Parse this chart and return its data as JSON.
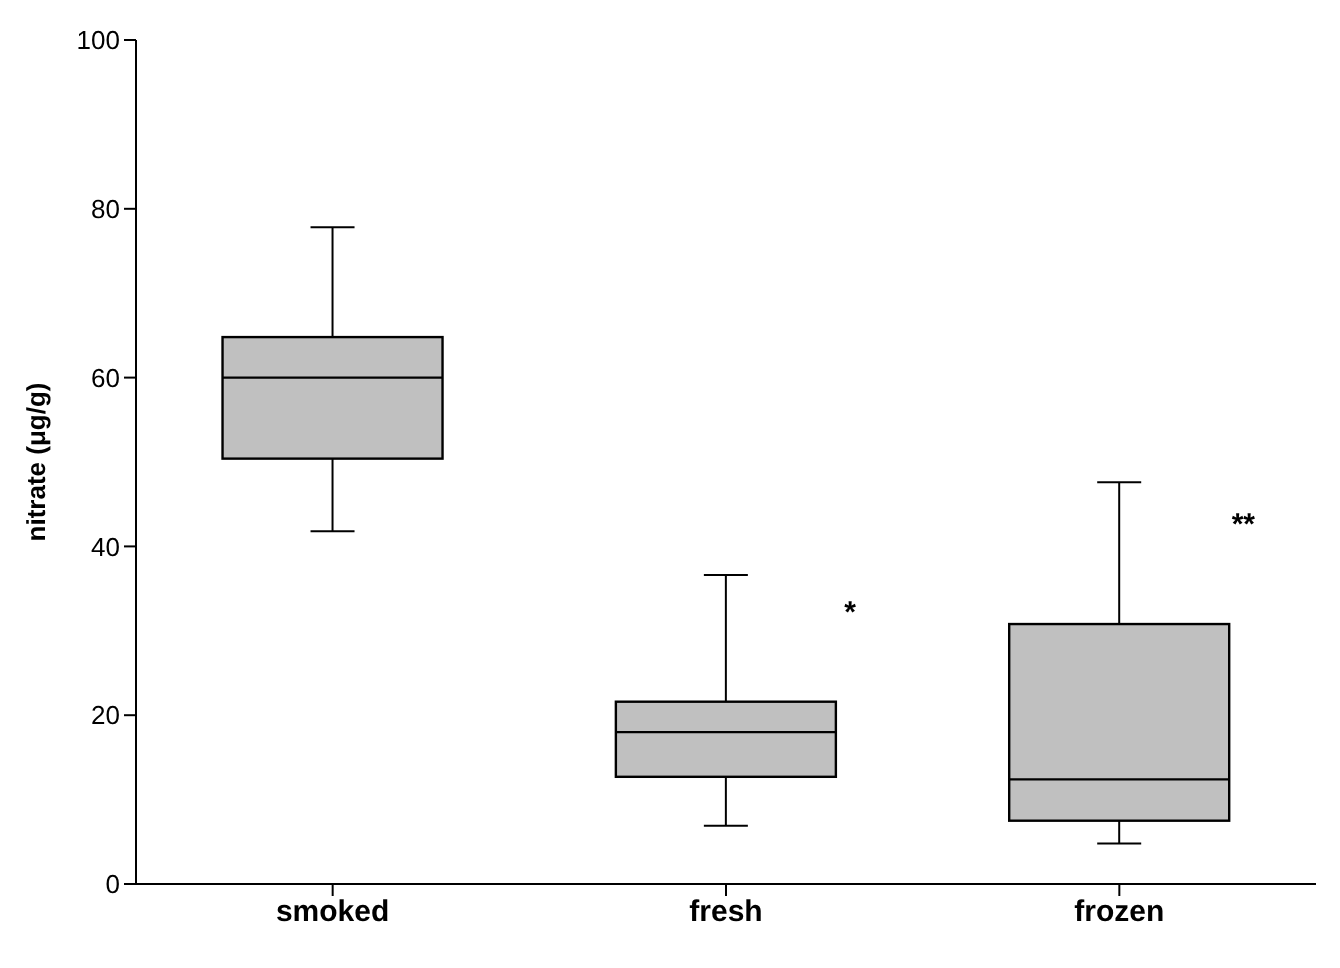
{
  "chart_data": {
    "type": "box",
    "categories": [
      "smoked",
      "fresh",
      "frozen"
    ],
    "ylabel": "nitrate (μg/g)",
    "ylim": [
      0,
      100
    ],
    "yticks": [
      0,
      20,
      40,
      60,
      80,
      100
    ],
    "color": "#c0c0c0",
    "boxes": [
      {
        "low": 41.8,
        "q1": 50.4,
        "median": 60,
        "q3": 64.8,
        "high": 77.8
      },
      {
        "low": 6.9,
        "q1": 12.7,
        "median": 18,
        "q3": 21.6,
        "high": 36.6
      },
      {
        "low": 4.8,
        "q1": 7.5,
        "median": 12.4,
        "q3": 30.8,
        "high": 47.6
      }
    ],
    "annotations": [
      "*",
      "**"
    ]
  }
}
